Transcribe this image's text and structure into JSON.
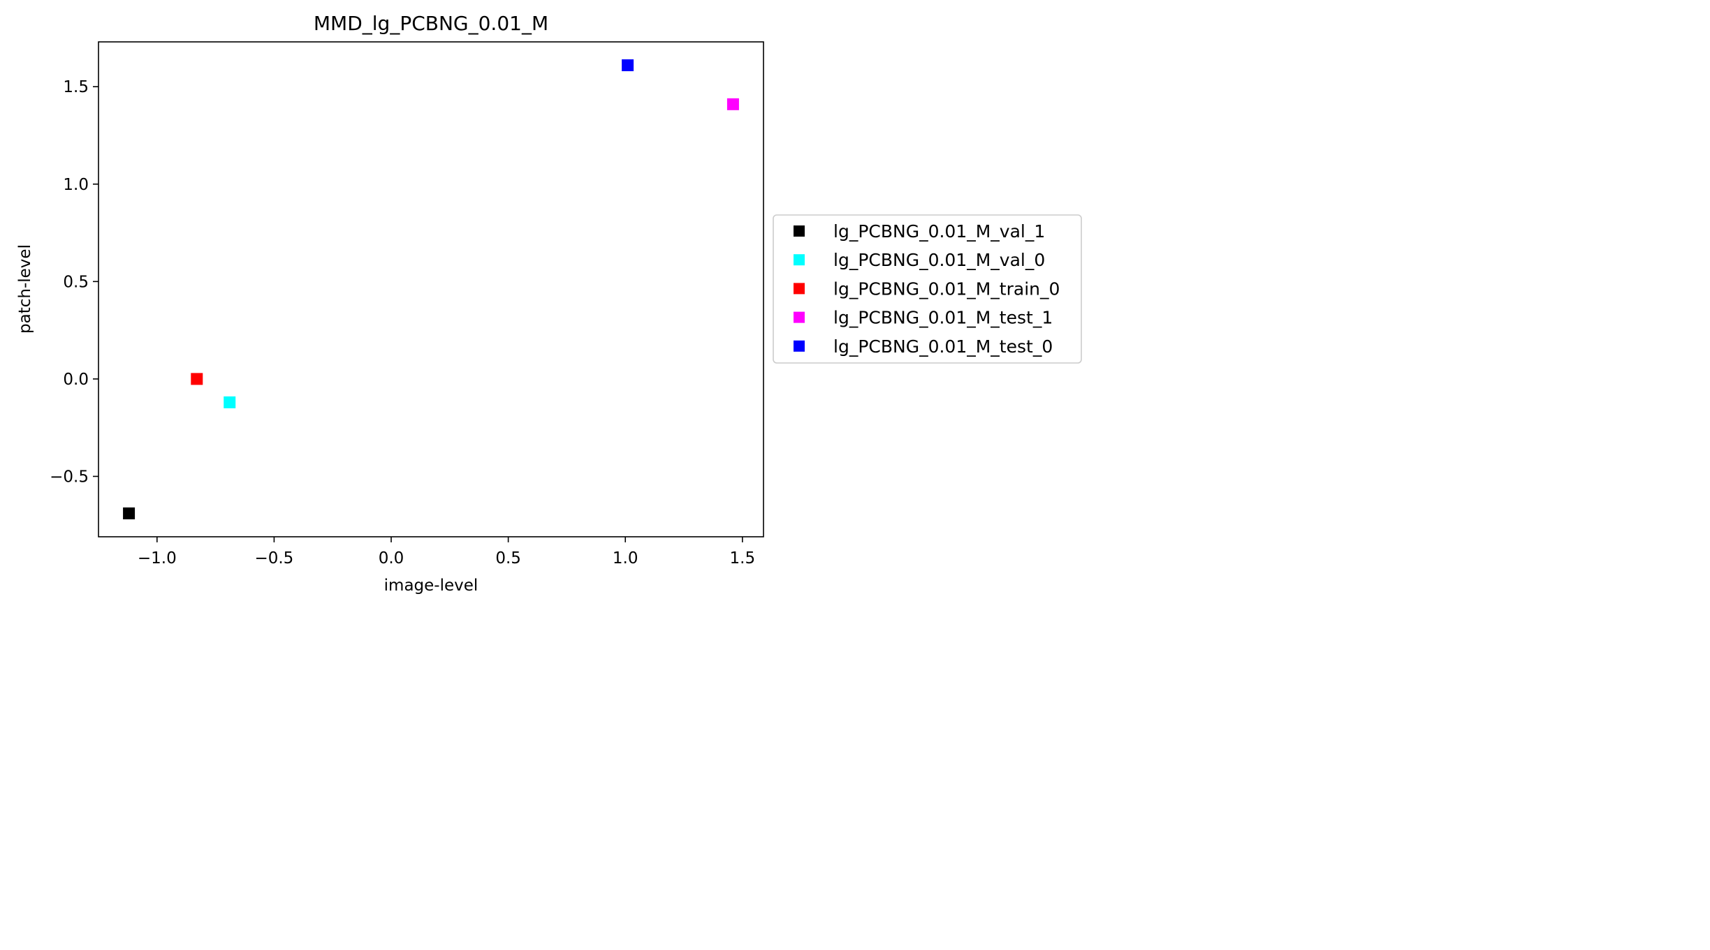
{
  "chart_data": {
    "type": "scatter",
    "title": "MMD_lg_PCBNG_0.01_M",
    "xlabel": "image-level",
    "ylabel": "patch-level",
    "xlim": [
      -1.25,
      1.59
    ],
    "ylim": [
      -0.81,
      1.73
    ],
    "xticks": [
      -1.0,
      -0.5,
      0.0,
      0.5,
      1.0,
      1.5
    ],
    "xtick_labels": [
      "−1.0",
      "−0.5",
      "0.0",
      "0.5",
      "1.0",
      "1.5"
    ],
    "yticks": [
      -0.5,
      0.0,
      0.5,
      1.0,
      1.5
    ],
    "ytick_labels": [
      "−0.5",
      "0.0",
      "0.5",
      "1.0",
      "1.5"
    ],
    "grid": false,
    "legend_position": "outside-right",
    "marker": "square",
    "series": [
      {
        "name": "lg_PCBNG_0.01_M_val_1",
        "color": "#000000",
        "points": [
          [
            -1.12,
            -0.69
          ]
        ]
      },
      {
        "name": "lg_PCBNG_0.01_M_val_0",
        "color": "#00ffff",
        "points": [
          [
            -0.69,
            -0.12
          ]
        ]
      },
      {
        "name": "lg_PCBNG_0.01_M_train_0",
        "color": "#ff0000",
        "points": [
          [
            -0.83,
            0.0
          ]
        ]
      },
      {
        "name": "lg_PCBNG_0.01_M_test_1",
        "color": "#ff00ff",
        "points": [
          [
            1.46,
            1.41
          ]
        ]
      },
      {
        "name": "lg_PCBNG_0.01_M_test_0",
        "color": "#0000ff",
        "points": [
          [
            1.01,
            1.61
          ]
        ]
      }
    ]
  }
}
